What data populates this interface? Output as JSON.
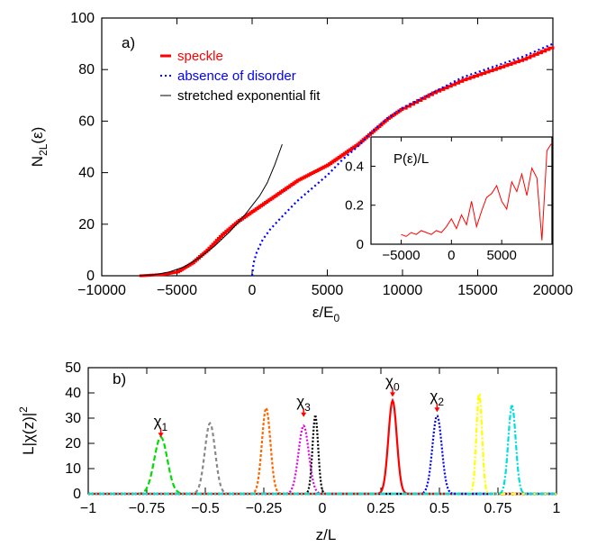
{
  "chart_data": [
    {
      "type": "line",
      "panel_label": "a)",
      "xlabel": "ε/E",
      "xlabel_sub": "0",
      "ylabel": "N",
      "ylabel_sub": "2L",
      "ylabel_suffix": "(ε)",
      "xlim": [
        -10000,
        20000
      ],
      "ylim": [
        0,
        100
      ],
      "xticks": [
        -10000,
        -5000,
        0,
        5000,
        10000,
        15000,
        20000
      ],
      "xtick_labels": [
        "−10000",
        "−5000",
        "0",
        "5000",
        "10000",
        "15000",
        "20000"
      ],
      "yticks": [
        0,
        20,
        40,
        60,
        80,
        100
      ],
      "ytick_labels": [
        "0",
        "20",
        "40",
        "60",
        "80",
        "100"
      ],
      "legend": "top-left",
      "series": [
        {
          "name": "speckle",
          "color": "#ff0000",
          "style": "solid-thick",
          "x": [
            -7500,
            -6000,
            -5000,
            -4000,
            -3000,
            -2000,
            -1000,
            0,
            1000,
            2000,
            3000,
            4000,
            5000,
            6000,
            7000,
            8000,
            9000,
            10000,
            12000,
            14000,
            16000,
            18000,
            20000
          ],
          "y": [
            0,
            0.5,
            1.5,
            5,
            10,
            16,
            21,
            25,
            29,
            33,
            37,
            40,
            43,
            47,
            51,
            56,
            61,
            65,
            71,
            76,
            80,
            84,
            89
          ]
        },
        {
          "name": "absence of disorder",
          "color": "#0000ff",
          "style": "dotted",
          "x": [
            0,
            100,
            300,
            700,
            1200,
            2000,
            3000,
            4000,
            5000,
            6000,
            7000,
            8000,
            9000,
            10000,
            12000,
            14000,
            16000,
            18000,
            20000
          ],
          "y": [
            0,
            5,
            9,
            14,
            18,
            23,
            29,
            34,
            39,
            45,
            50,
            56,
            61,
            65,
            71,
            77,
            81,
            85,
            90
          ]
        },
        {
          "name": "stretched exponential fit",
          "color": "#000000",
          "style": "solid-thin",
          "x": [
            -7500,
            -6500,
            -5500,
            -4500,
            -3500,
            -2500,
            -1500,
            -500,
            500,
            1000,
            1500,
            2000
          ],
          "y": [
            0,
            0.4,
            1.5,
            3.5,
            7,
            11.5,
            17,
            23.5,
            31,
            36,
            43,
            51
          ]
        }
      ],
      "inset": {
        "type": "line",
        "ylabel": "P(ε)/L",
        "xlim": [
          -8000,
          10000
        ],
        "ylim": [
          0,
          0.55
        ],
        "xticks": [
          -5000,
          0,
          5000
        ],
        "xtick_labels": [
          "−5000",
          "0",
          "5000"
        ],
        "yticks": [
          0,
          0.2,
          0.4
        ],
        "ytick_labels": [
          "0",
          "0.2",
          "0.4"
        ],
        "color": "#ff0000",
        "x": [
          -5000,
          -4500,
          -4000,
          -3500,
          -3000,
          -2500,
          -2000,
          -1500,
          -1000,
          -500,
          0,
          500,
          1000,
          1500,
          2000,
          2500,
          3000,
          3500,
          4000,
          4500,
          5000,
          5500,
          6000,
          6500,
          7000,
          7500,
          8000,
          8500,
          9000,
          9500,
          10000
        ],
        "y": [
          0.05,
          0.04,
          0.06,
          0.05,
          0.07,
          0.06,
          0.05,
          0.07,
          0.06,
          0.09,
          0.13,
          0.08,
          0.15,
          0.1,
          0.22,
          0.09,
          0.17,
          0.24,
          0.26,
          0.3,
          0.22,
          0.18,
          0.32,
          0.27,
          0.36,
          0.25,
          0.39,
          0.34,
          0.02,
          0.48,
          0.52
        ]
      }
    },
    {
      "type": "line",
      "panel_label": "b)",
      "xlabel": "z/L",
      "ylabel": "L|χ(z)|",
      "ylabel_sup": "2",
      "xlim": [
        -1,
        1
      ],
      "ylim": [
        0,
        50
      ],
      "xticks": [
        -1,
        -0.75,
        -0.5,
        -0.25,
        0,
        0.25,
        0.5,
        0.75,
        1
      ],
      "xtick_labels": [
        "−1",
        "−0.75",
        "−0.5",
        "−0.25",
        "0",
        "0.25",
        "0.5",
        "0.75",
        "1"
      ],
      "yticks": [
        0,
        10,
        20,
        30,
        40,
        50
      ],
      "ytick_labels": [
        "0",
        "10",
        "20",
        "30",
        "40",
        "50"
      ],
      "peaks": [
        {
          "center": -0.69,
          "height": 22.5,
          "width": 0.028,
          "color": "#00dd00",
          "dash": "6,3"
        },
        {
          "center": -0.48,
          "height": 28,
          "width": 0.022,
          "color": "#888888",
          "dash": "4,3"
        },
        {
          "center": -0.24,
          "height": 34,
          "width": 0.018,
          "color": "#ff6600",
          "dash": "3,2"
        },
        {
          "center": -0.08,
          "height": 27,
          "width": 0.022,
          "color": "#dd00dd",
          "dash": "2,2"
        },
        {
          "center": -0.03,
          "height": 31,
          "width": 0.012,
          "color": "#000000",
          "dash": "2,2"
        },
        {
          "center": 0.3,
          "height": 37,
          "width": 0.018,
          "color": "#ff0000",
          "dash": ""
        },
        {
          "center": 0.49,
          "height": 31,
          "width": 0.02,
          "color": "#0000ff",
          "dash": "2,2"
        },
        {
          "center": 0.67,
          "height": 40,
          "width": 0.012,
          "color": "#ffff00",
          "dash": "6,2,2,2"
        },
        {
          "center": 0.81,
          "height": 35,
          "width": 0.016,
          "color": "#00dddd",
          "dash": "6,2,2,2"
        }
      ],
      "annotations": [
        {
          "text": "χ",
          "sub": "1",
          "x": -0.69,
          "y": 26
        },
        {
          "text": "χ",
          "sub": "3",
          "x": -0.08,
          "y": 34
        },
        {
          "text": "χ",
          "sub": "0",
          "x": 0.3,
          "y": 42
        },
        {
          "text": "χ",
          "sub": "2",
          "x": 0.49,
          "y": 36
        }
      ]
    }
  ]
}
